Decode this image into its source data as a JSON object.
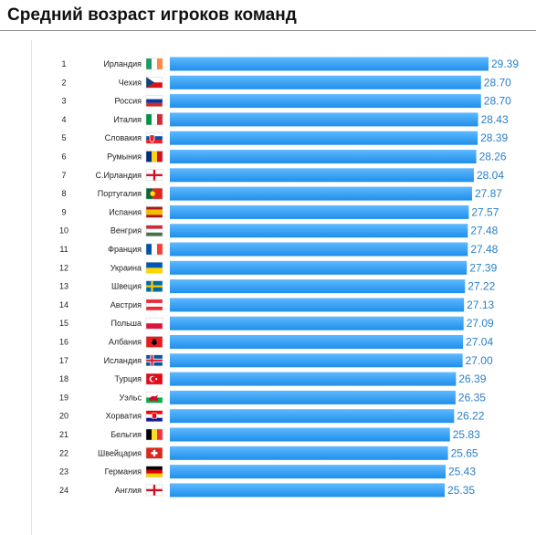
{
  "page": {
    "title": "Средний возраст игроков команд"
  },
  "chart_data": {
    "type": "bar",
    "orientation": "horizontal",
    "title": "Средний возраст игроков команд",
    "bar_color": "#1f8fea",
    "bar_color_light": "#5fb9ff",
    "value_color": "#2a7fc6",
    "xlim": [
      0,
      29.39
    ],
    "grid": false,
    "legend": "none",
    "ranks": [
      "1",
      "2",
      "3",
      "4",
      "5",
      "6",
      "7",
      "8",
      "9",
      "10",
      "11",
      "12",
      "13",
      "14",
      "15",
      "16",
      "17",
      "18",
      "19",
      "20",
      "21",
      "22",
      "23",
      "24"
    ],
    "categories": [
      "Ирландия",
      "Чехия",
      "Россия",
      "Италия",
      "Словакия",
      "Румыния",
      "С.Ирландия",
      "Португалия",
      "Испания",
      "Венгрия",
      "Франция",
      "Украина",
      "Швеция",
      "Австрия",
      "Польша",
      "Албания",
      "Исландия",
      "Турция",
      "Уэльс",
      "Хорватия",
      "Бельгия",
      "Швейцария",
      "Германия",
      "Англия"
    ],
    "values": [
      29.39,
      28.7,
      28.7,
      28.43,
      28.39,
      28.26,
      28.04,
      27.87,
      27.57,
      27.48,
      27.48,
      27.39,
      27.22,
      27.13,
      27.09,
      27.04,
      27.0,
      26.39,
      26.35,
      26.22,
      25.83,
      25.65,
      25.43,
      25.35
    ],
    "value_labels": [
      "29.39",
      "28.70",
      "28.70",
      "28.43",
      "28.39",
      "28.26",
      "28.04",
      "27.87",
      "27.57",
      "27.48",
      "27.48",
      "27.39",
      "27.22",
      "27.13",
      "27.09",
      "27.04",
      "27.00",
      "26.39",
      "26.35",
      "26.22",
      "25.83",
      "25.65",
      "25.43",
      "25.35"
    ],
    "flags": [
      "ireland-flag-icon",
      "czech-flag-icon",
      "russia-flag-icon",
      "italy-flag-icon",
      "slovakia-flag-icon",
      "romania-flag-icon",
      "northern-ireland-flag-icon",
      "portugal-flag-icon",
      "spain-flag-icon",
      "hungary-flag-icon",
      "france-flag-icon",
      "ukraine-flag-icon",
      "sweden-flag-icon",
      "austria-flag-icon",
      "poland-flag-icon",
      "albania-flag-icon",
      "iceland-flag-icon",
      "turkey-flag-icon",
      "wales-flag-icon",
      "croatia-flag-icon",
      "belgium-flag-icon",
      "switzerland-flag-icon",
      "germany-flag-icon",
      "england-flag-icon"
    ]
  }
}
